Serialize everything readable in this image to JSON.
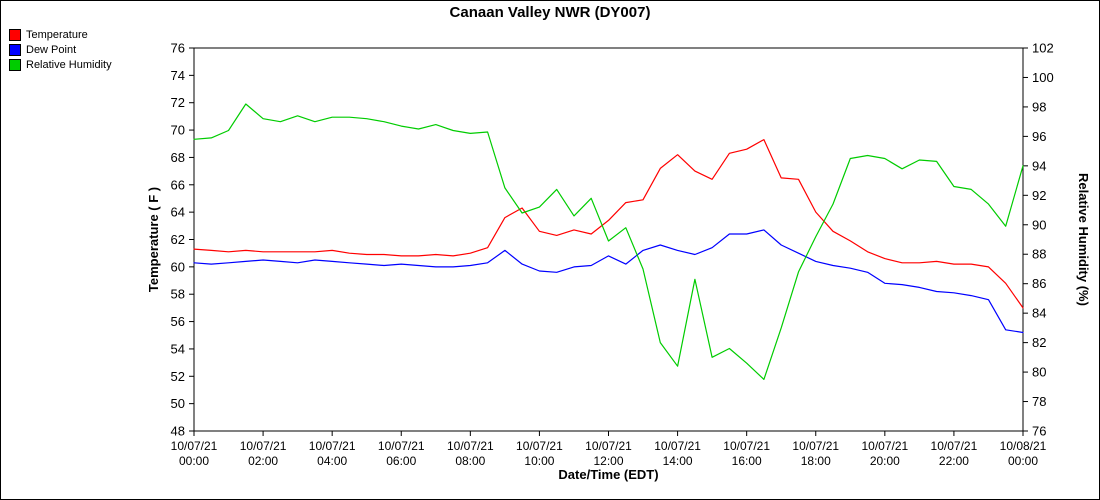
{
  "legend": {
    "items": [
      {
        "label": "Temperature",
        "color": "#ff0000"
      },
      {
        "label": "Dew Point",
        "color": "#0000ff"
      },
      {
        "label": "Relative Humidity",
        "color": "#00cc00"
      }
    ]
  },
  "chart_data": {
    "type": "line",
    "title": "Canaan Valley NWR (DY007)",
    "left_axis": {
      "label": "Temperature ( F )",
      "min": 48,
      "max": 76,
      "step": 2
    },
    "right_axis": {
      "label": "Relative Humidity (%)",
      "min": 76,
      "max": 102,
      "step": 2
    },
    "x_axis": {
      "label": "Date/Time (EDT)",
      "min_hour": 0,
      "max_hour": 24,
      "ticks": [
        {
          "hour": 0,
          "date": "10/07/21",
          "time": "00:00"
        },
        {
          "hour": 2,
          "date": "10/07/21",
          "time": "02:00"
        },
        {
          "hour": 4,
          "date": "10/07/21",
          "time": "04:00"
        },
        {
          "hour": 6,
          "date": "10/07/21",
          "time": "06:00"
        },
        {
          "hour": 8,
          "date": "10/07/21",
          "time": "08:00"
        },
        {
          "hour": 10,
          "date": "10/07/21",
          "time": "10:00"
        },
        {
          "hour": 12,
          "date": "10/07/21",
          "time": "12:00"
        },
        {
          "hour": 14,
          "date": "10/07/21",
          "time": "14:00"
        },
        {
          "hour": 16,
          "date": "10/07/21",
          "time": "16:00"
        },
        {
          "hour": 18,
          "date": "10/07/21",
          "time": "18:00"
        },
        {
          "hour": 20,
          "date": "10/07/21",
          "time": "20:00"
        },
        {
          "hour": 22,
          "date": "10/07/21",
          "time": "22:00"
        },
        {
          "hour": 24,
          "date": "10/08/21",
          "time": "00:00"
        }
      ]
    },
    "x_hours": [
      0,
      0.5,
      1,
      1.5,
      2,
      2.5,
      3,
      3.5,
      4,
      4.5,
      5,
      5.5,
      6,
      6.5,
      7,
      7.5,
      8,
      8.5,
      9,
      9.5,
      10,
      10.5,
      11,
      11.5,
      12,
      12.5,
      13,
      13.5,
      14,
      14.5,
      15,
      15.5,
      16,
      16.5,
      17,
      17.5,
      18,
      18.5,
      19,
      19.5,
      20,
      20.5,
      21,
      21.5,
      22,
      22.5,
      23,
      23.5,
      24
    ],
    "series": [
      {
        "name": "Temperature",
        "color": "#ff0000",
        "axis": "left",
        "values": [
          61.3,
          61.2,
          61.1,
          61.2,
          61.1,
          61.1,
          61.1,
          61.1,
          61.2,
          61.0,
          60.9,
          60.9,
          60.8,
          60.8,
          60.9,
          60.8,
          61.0,
          61.4,
          63.6,
          64.3,
          62.6,
          62.3,
          62.7,
          62.4,
          63.4,
          64.7,
          64.9,
          67.2,
          68.2,
          67.0,
          66.4,
          68.3,
          68.6,
          69.3,
          66.5,
          66.4,
          64.0,
          62.6,
          61.9,
          61.1,
          60.6,
          60.3,
          60.3,
          60.4,
          60.2,
          60.2,
          60.0,
          58.8,
          57.0
        ]
      },
      {
        "name": "Dew Point",
        "color": "#0000ff",
        "axis": "left",
        "values": [
          60.3,
          60.2,
          60.3,
          60.4,
          60.5,
          60.4,
          60.3,
          60.5,
          60.4,
          60.3,
          60.2,
          60.1,
          60.2,
          60.1,
          60.0,
          60.0,
          60.1,
          60.3,
          61.2,
          60.2,
          59.7,
          59.6,
          60.0,
          60.1,
          60.8,
          60.2,
          61.2,
          61.6,
          61.2,
          60.9,
          61.4,
          62.4,
          62.4,
          62.7,
          61.6,
          61.0,
          60.4,
          60.1,
          59.9,
          59.6,
          58.8,
          58.7,
          58.5,
          58.2,
          58.1,
          57.9,
          57.6,
          55.4,
          55.2
        ]
      },
      {
        "name": "Relative Humidity",
        "color": "#00cc00",
        "axis": "right",
        "values": [
          95.8,
          95.9,
          96.4,
          98.2,
          97.2,
          97.0,
          97.4,
          97.0,
          97.3,
          97.3,
          97.2,
          97.0,
          96.7,
          96.5,
          96.8,
          96.4,
          96.2,
          96.3,
          92.5,
          90.8,
          91.2,
          92.4,
          90.6,
          91.8,
          88.9,
          89.8,
          87.0,
          82.0,
          80.4,
          86.3,
          81.0,
          81.6,
          80.6,
          79.5,
          83.0,
          86.8,
          89.2,
          91.4,
          94.5,
          94.7,
          94.5,
          93.8,
          94.4,
          94.3,
          92.6,
          92.4,
          91.4,
          89.9,
          94.0
        ]
      }
    ]
  }
}
